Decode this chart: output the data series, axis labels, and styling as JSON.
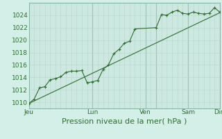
{
  "title": "Pression niveau de la mer( hPa )",
  "bg_color": "#d4eee8",
  "plot_bg_color": "#cce8e0",
  "grid_color": "#b0d4c8",
  "grid_dark_color": "#88b8a8",
  "line_color": "#2d6e2d",
  "data_x": [
    0,
    1,
    2,
    3,
    4,
    5,
    6,
    7,
    8,
    9,
    10,
    11,
    12,
    13,
    14,
    15,
    16,
    17,
    18,
    19,
    20,
    24,
    25,
    26,
    27,
    28,
    29,
    30,
    31,
    32,
    33,
    34,
    35,
    36
  ],
  "data_y": [
    1009.8,
    1010.5,
    1012.3,
    1012.5,
    1013.6,
    1013.8,
    1014.1,
    1014.8,
    1015.0,
    1015.0,
    1015.1,
    1013.1,
    1013.3,
    1013.5,
    1015.3,
    1016.0,
    1017.8,
    1018.5,
    1019.5,
    1019.8,
    1021.8,
    1022.0,
    1024.1,
    1024.0,
    1024.5,
    1024.8,
    1024.3,
    1024.2,
    1024.5,
    1024.3,
    1024.2,
    1024.3,
    1025.2,
    1024.5
  ],
  "trend_x": [
    0,
    36
  ],
  "trend_y": [
    1009.8,
    1024.4
  ],
  "xlim": [
    0,
    36
  ],
  "ylim": [
    1009,
    1026
  ],
  "xtick_positions": [
    0,
    12,
    22,
    24,
    30,
    36
  ],
  "xtick_labels": [
    "Jeu",
    "Lun",
    "Ven",
    "",
    "Sam",
    "Dim"
  ],
  "ytick_positions": [
    1010,
    1012,
    1014,
    1016,
    1018,
    1020,
    1022,
    1024
  ],
  "fontsize": 6.5,
  "title_fontsize": 8.0
}
